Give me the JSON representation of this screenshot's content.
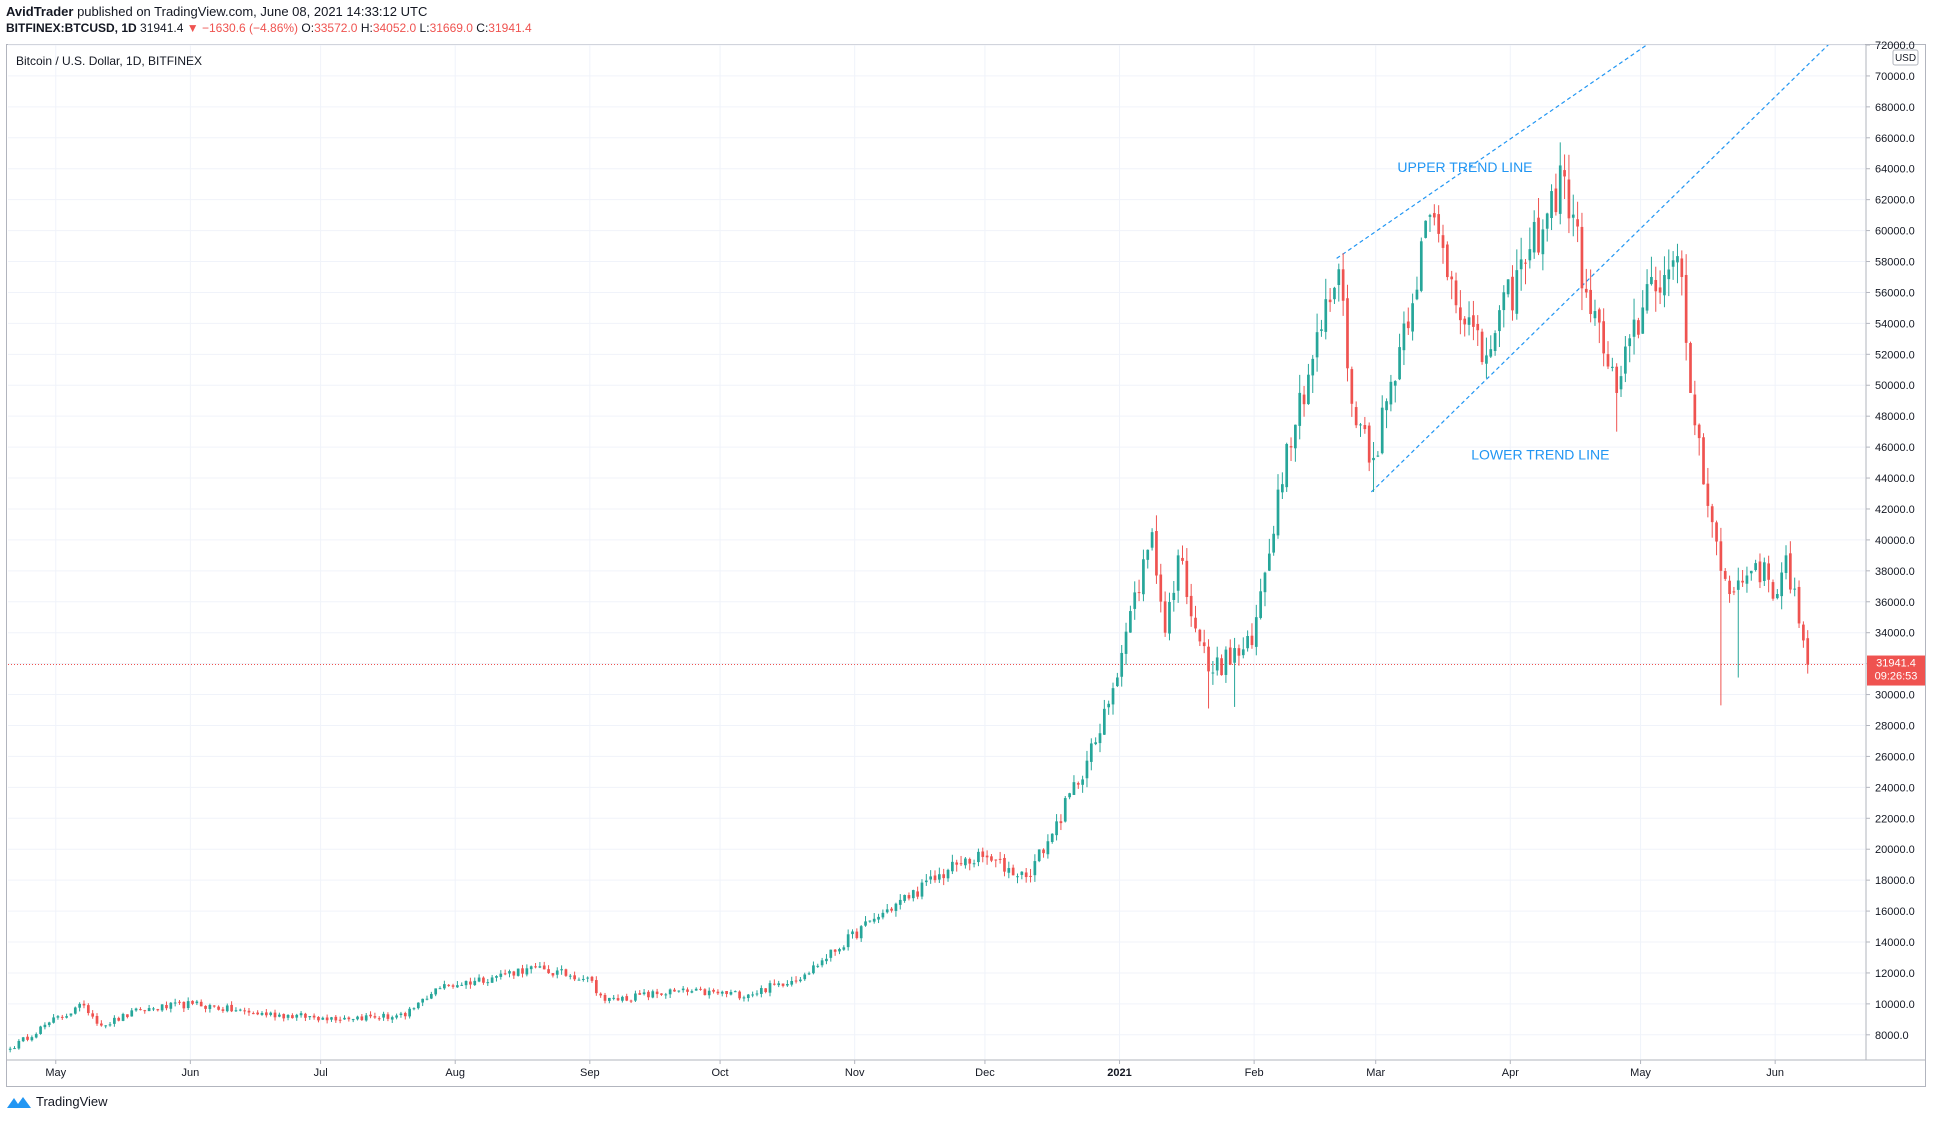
{
  "header": {
    "author": "AvidTrader",
    "published_text": "published on TradingView.com, June 08, 2021 14:33:12 UTC",
    "symbol": "BITFINEX:BTCUSD, 1D",
    "last": "31941.4",
    "change": "−1630.6 (−4.86%)",
    "open_label": "O:",
    "open": "33572.0",
    "high_label": "H:",
    "high": "34052.0",
    "low_label": "L:",
    "low": "31669.0",
    "close_label": "C:",
    "close": "31941.4"
  },
  "legend": {
    "title": "Bitcoin / U.S. Dollar, 1D, BITFINEX"
  },
  "price_tag": {
    "price": "31941.4",
    "countdown": "09:26:53"
  },
  "footer": {
    "brand": "TradingView"
  },
  "colors": {
    "up": "#26a69a",
    "down": "#ef5350",
    "trend": "#2196f3",
    "grid": "#f0f3fa",
    "axis_text": "#131722"
  },
  "chart_data": {
    "type": "candlestick",
    "title": "Bitcoin / U.S. Dollar, 1D, BITFINEX",
    "ylabel": "USD",
    "ylim": [
      6500,
      72000
    ],
    "grid": true,
    "yticks": [
      "8000.0",
      "10000.0",
      "12000.0",
      "14000.0",
      "16000.0",
      "18000.0",
      "20000.0",
      "22000.0",
      "24000.0",
      "26000.0",
      "28000.0",
      "30000.0",
      "32000.0",
      "34000.0",
      "36000.0",
      "38000.0",
      "40000.0",
      "42000.0",
      "44000.0",
      "46000.0",
      "48000.0",
      "50000.0",
      "52000.0",
      "54000.0",
      "56000.0",
      "58000.0",
      "60000.0",
      "62000.0",
      "64000.0",
      "66000.0",
      "68000.0",
      "70000.0",
      "72000.0"
    ],
    "xticks": [
      "May",
      "Jun",
      "Jul",
      "Aug",
      "Sep",
      "Oct",
      "Nov",
      "Dec",
      "2021",
      "Feb",
      "Mar",
      "Apr",
      "May",
      "Jun"
    ],
    "xtick_dates": [
      "2020-05-01",
      "2020-06-01",
      "2020-07-01",
      "2020-08-01",
      "2020-09-01",
      "2020-10-01",
      "2020-11-01",
      "2020-12-01",
      "2021-01-01",
      "2021-02-01",
      "2021-03-01",
      "2021-04-01",
      "2021-05-01",
      "2021-06-01"
    ],
    "x_start": "2020-04-20",
    "current_price": 31941.4,
    "anchors": [
      [
        "2020-04-20",
        7100
      ],
      [
        "2020-04-29",
        8800
      ],
      [
        "2020-05-07",
        9900
      ],
      [
        "2020-05-11",
        8600
      ],
      [
        "2020-05-20",
        9600
      ],
      [
        "2020-06-01",
        10000
      ],
      [
        "2020-06-15",
        9400
      ],
      [
        "2020-07-01",
        9100
      ],
      [
        "2020-07-20",
        9200
      ],
      [
        "2020-07-27",
        11000
      ],
      [
        "2020-08-10",
        11800
      ],
      [
        "2020-08-17",
        12300
      ],
      [
        "2020-08-31",
        11700
      ],
      [
        "2020-09-04",
        10200
      ],
      [
        "2020-09-20",
        10800
      ],
      [
        "2020-10-07",
        10600
      ],
      [
        "2020-10-20",
        11900
      ],
      [
        "2020-11-05",
        15500
      ],
      [
        "2020-11-24",
        19000
      ],
      [
        "2020-11-30",
        19500
      ],
      [
        "2020-12-10",
        18200
      ],
      [
        "2020-12-16",
        21000
      ],
      [
        "2020-12-27",
        27500
      ],
      [
        "2021-01-08",
        40500
      ],
      [
        "2021-01-11",
        34000
      ],
      [
        "2021-01-14",
        39000
      ],
      [
        "2021-01-21",
        31500
      ],
      [
        "2021-01-31",
        33200
      ],
      [
        "2021-02-08",
        46200
      ],
      [
        "2021-02-20",
        57500
      ],
      [
        "2021-02-23",
        48800
      ],
      [
        "2021-02-28",
        45300
      ],
      [
        "2021-03-13",
        61000
      ],
      [
        "2021-03-25",
        51500
      ],
      [
        "2021-04-05",
        58800
      ],
      [
        "2021-04-13",
        63500
      ],
      [
        "2021-04-18",
        56000
      ],
      [
        "2021-04-25",
        49500
      ],
      [
        "2021-05-03",
        57000
      ],
      [
        "2021-05-10",
        57000
      ],
      [
        "2021-05-12",
        49500
      ],
      [
        "2021-05-19",
        38000
      ],
      [
        "2021-05-21",
        36500
      ],
      [
        "2021-05-27",
        38500
      ],
      [
        "2021-06-01",
        36500
      ],
      [
        "2021-06-03",
        39000
      ],
      [
        "2021-06-07",
        33500
      ],
      [
        "2021-06-08",
        31941
      ]
    ],
    "wicks": [
      [
        "2021-01-21",
        29100
      ],
      [
        "2021-01-27",
        29200
      ],
      [
        "2021-02-28",
        43100
      ],
      [
        "2021-04-14",
        64900
      ],
      [
        "2021-04-25",
        47000
      ],
      [
        "2021-05-19",
        29300
      ],
      [
        "2021-05-23",
        31100
      ],
      [
        "2021-06-08",
        31669
      ]
    ],
    "annotations": [
      {
        "text": "UPPER TREND LINE",
        "date": "2021-03-06",
        "price": 63800
      },
      {
        "text": "LOWER TREND LINE",
        "date": "2021-03-23",
        "price": 45200
      }
    ],
    "trend_lines": [
      {
        "name": "upper",
        "from": [
          "2021-02-20",
          58200
        ],
        "to": [
          "2021-05-05",
          72500
        ]
      },
      {
        "name": "lower",
        "from": [
          "2021-02-28",
          43100
        ],
        "to": [
          "2021-06-15",
          72500
        ]
      }
    ]
  }
}
